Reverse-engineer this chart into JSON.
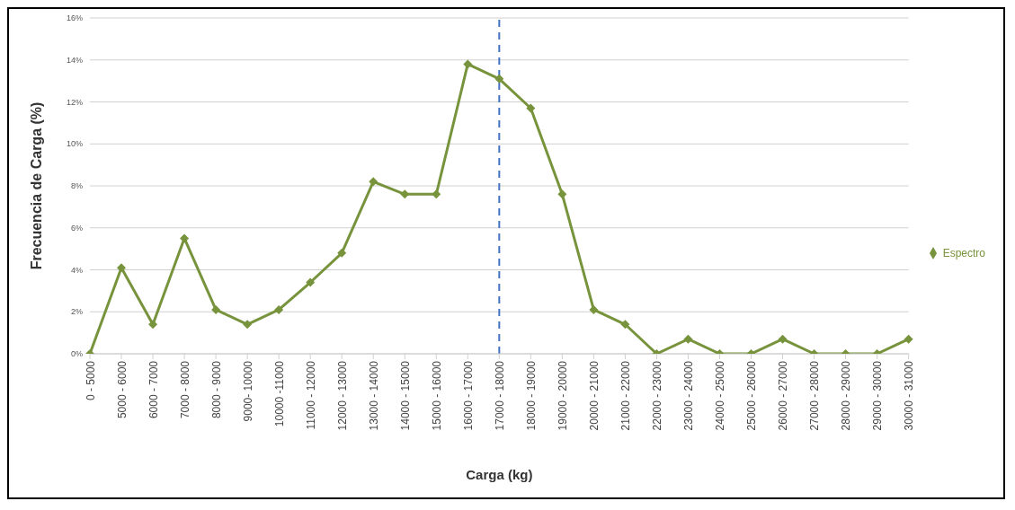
{
  "chart_data": {
    "type": "line",
    "xlabel": "Carga (kg)",
    "ylabel": "Frecuencia de Carga (%)",
    "categories": [
      "0 - 5000",
      "5000 - 6000",
      "6000 - 7000",
      "7000 - 8000",
      "8000 - 9000",
      "9000- 10000",
      "10000 -11000",
      "11000 - 12000",
      "12000 - 13000",
      "13000 - 14000",
      "14000 - 15000",
      "15000 - 16000",
      "16000 - 17000",
      "17000 - 18000",
      "18000 - 19000",
      "19000 - 20000",
      "20000 - 21000",
      "21000 - 22000",
      "22000 - 23000",
      "23000 - 24000",
      "24000 - 25000",
      "25000 - 26000",
      "26000 - 27000",
      "27000 - 28000",
      "28000 - 29000",
      "29000 - 30000",
      "30000 - 31000"
    ],
    "series": [
      {
        "name": "Espectro",
        "color": "#77933c",
        "values": [
          0,
          4.1,
          1.4,
          5.5,
          2.1,
          1.4,
          2.1,
          3.4,
          4.8,
          8.2,
          7.6,
          7.6,
          13.8,
          13.1,
          11.7,
          7.6,
          2.1,
          1.4,
          0,
          0.7,
          0,
          0,
          0.7,
          0,
          0,
          0,
          0.7
        ]
      }
    ],
    "ylim": [
      0,
      16
    ],
    "yticks": [
      {
        "value": 0,
        "label": "0%"
      },
      {
        "value": 2,
        "label": "2%"
      },
      {
        "value": 4,
        "label": "4%"
      },
      {
        "value": 6,
        "label": "6%"
      },
      {
        "value": 8,
        "label": "8%"
      },
      {
        "value": 10,
        "label": "10%"
      },
      {
        "value": 12,
        "label": "12%"
      },
      {
        "value": 14,
        "label": "14%"
      },
      {
        "value": 16,
        "label": "16%"
      }
    ],
    "ref_lines": [
      {
        "axis": "x",
        "value": "17000 - 18000",
        "color": "#4472c4",
        "line_style": "dashed"
      }
    ],
    "grid": "y",
    "legend": "right",
    "marker": "diamond",
    "line_style": "solid"
  }
}
